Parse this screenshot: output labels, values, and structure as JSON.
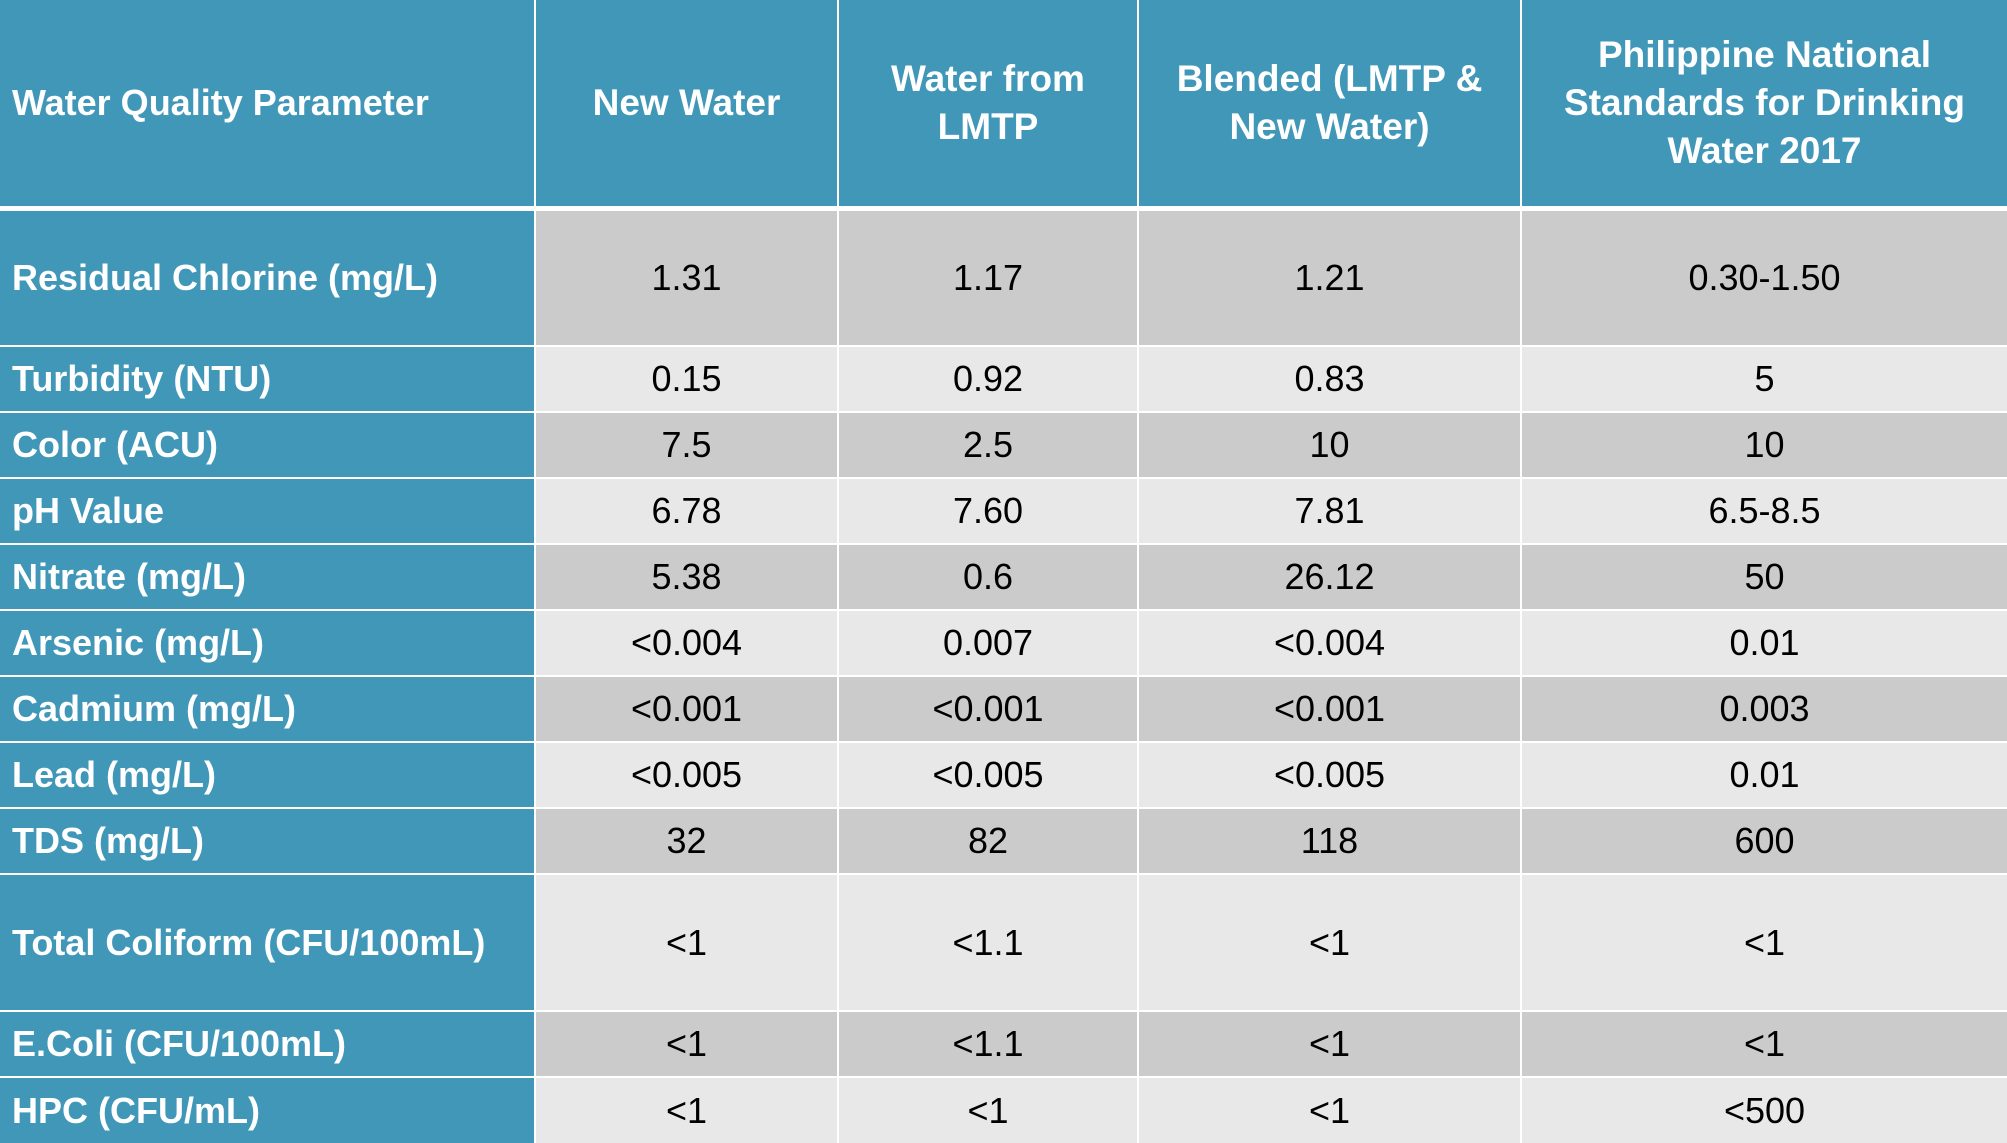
{
  "table": {
    "header": [
      "Water Quality Parameter",
      "New Water",
      "Water from LMTP",
      "Blended (LMTP & New Water)",
      "Philippine National Standards for Drinking Water 2017"
    ],
    "rows": [
      [
        "Residual Chlorine (mg/L)",
        "1.31",
        "1.17",
        "1.21",
        "0.30-1.50"
      ],
      [
        "Turbidity (NTU)",
        "0.15",
        "0.92",
        "0.83",
        "5"
      ],
      [
        "Color (ACU)",
        "7.5",
        "2.5",
        "10",
        "10"
      ],
      [
        "pH Value",
        "6.78",
        "7.60",
        "7.81",
        "6.5-8.5"
      ],
      [
        "Nitrate (mg/L)",
        "5.38",
        "0.6",
        "26.12",
        "50"
      ],
      [
        "Arsenic (mg/L)",
        "<0.004",
        "0.007",
        "<0.004",
        "0.01"
      ],
      [
        "Cadmium (mg/L)",
        "<0.001",
        "<0.001",
        "<0.001",
        "0.003"
      ],
      [
        "Lead (mg/L)",
        "<0.005",
        "<0.005",
        "<0.005",
        "0.01"
      ],
      [
        "TDS (mg/L)",
        "32",
        "82",
        "118",
        "600"
      ],
      [
        "Total Coliform (CFU/100mL)",
        "<1",
        "<1.1",
        "<1",
        "<1"
      ],
      [
        "E.Coli (CFU/100mL)",
        "<1",
        "<1.1",
        "<1",
        "<1"
      ],
      [
        "HPC (CFU/mL)",
        "<1",
        "<1",
        "<1",
        "<500"
      ]
    ]
  }
}
